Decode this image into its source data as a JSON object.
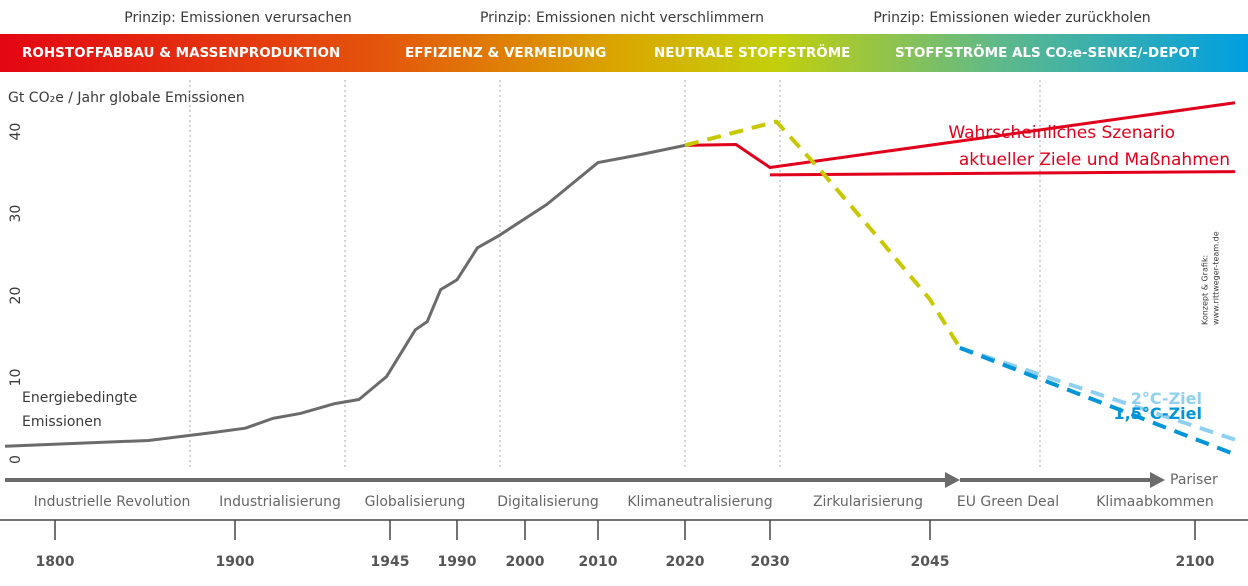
{
  "chart_data": {
    "type": "line",
    "title": "Gt CO₂e / Jahr globale Emissionen",
    "principles": [
      "Prinzip: Emissionen verursachen",
      "Prinzip: Emissionen nicht verschlimmern",
      "Prinzip: Emissionen wieder zurückholen"
    ],
    "phases": [
      "ROHSTOFFABBAU & MASSENPRODUKTION",
      "EFFIZIENZ & VERMEIDUNG",
      "NEUTRALE STOFFSTRÖME",
      "STOFFSTRÖME ALS CO₂e-SENKE/-DEPOT"
    ],
    "eras": [
      "Industrielle Revolution",
      "Industrialisierung",
      "Globalisierung",
      "Digitalisierung",
      "Klimaneutralisierung",
      "Zirkularisierung",
      "EU Green Deal",
      "Klimaabkommen"
    ],
    "paris_label": "Pariser",
    "annotations": [
      "Energiebedingte",
      "Emissionen",
      "Wahrscheinliches Szenario",
      "aktueller Ziele und Maßnahmen"
    ],
    "credit": [
      "Konzept & Grafik:",
      "www.rittweger-team.de"
    ],
    "xlim": [
      1772,
      2108
    ],
    "xticks": [
      1800,
      1900,
      1945,
      1990,
      2000,
      2010,
      2020,
      2030,
      2045,
      2100
    ],
    "ylim": [
      -2.5,
      43
    ],
    "yticks": [
      0,
      10,
      20,
      30,
      40
    ],
    "series": [
      {
        "color": "#6b6b6b",
        "dash": false,
        "x": [
          1772,
          1852,
          1889,
          1903,
          1911,
          1919,
          1929,
          1936,
          1944,
          1962,
          1970,
          1979,
          1990,
          1993,
          1996,
          2003,
          2010,
          2015,
          2020
        ],
        "values": [
          0.4,
          1.1,
          2.1,
          2.6,
          3.8,
          4.4,
          5.6,
          6.1,
          8.9,
          14.6,
          15.6,
          19.5,
          20.7,
          24.6,
          26,
          29.9,
          35,
          36,
          37.1
        ]
      },
      {
        "color": "#e0001b",
        "dash": false,
        "x": [
          2020,
          2026,
          2030,
          2108
        ],
        "values": [
          37.1,
          37.2,
          34.4,
          42.3
        ]
      },
      {
        "color": "#e0001b",
        "dash": false,
        "x": [
          2030,
          2108
        ],
        "values": [
          33.5,
          33.9
        ]
      },
      {
        "color": "#c8c800",
        "dash": true,
        "x": [
          2020,
          2030.6,
          2034.7,
          2040.3,
          2045,
          2051.2
        ],
        "values": [
          37.1,
          40,
          34.1,
          25.6,
          18.3,
          12.4
        ]
      },
      {
        "name": "2°C-Ziel",
        "color": "#8fd0f0",
        "dash": true,
        "x": [
          2051.2,
          2108
        ],
        "values": [
          12.4,
          1.2
        ]
      },
      {
        "name": "1,5°C-Ziel",
        "color": "#0095d9",
        "dash": true,
        "x": [
          2051.2,
          2108
        ],
        "values": [
          12.4,
          -0.6
        ]
      }
    ]
  }
}
